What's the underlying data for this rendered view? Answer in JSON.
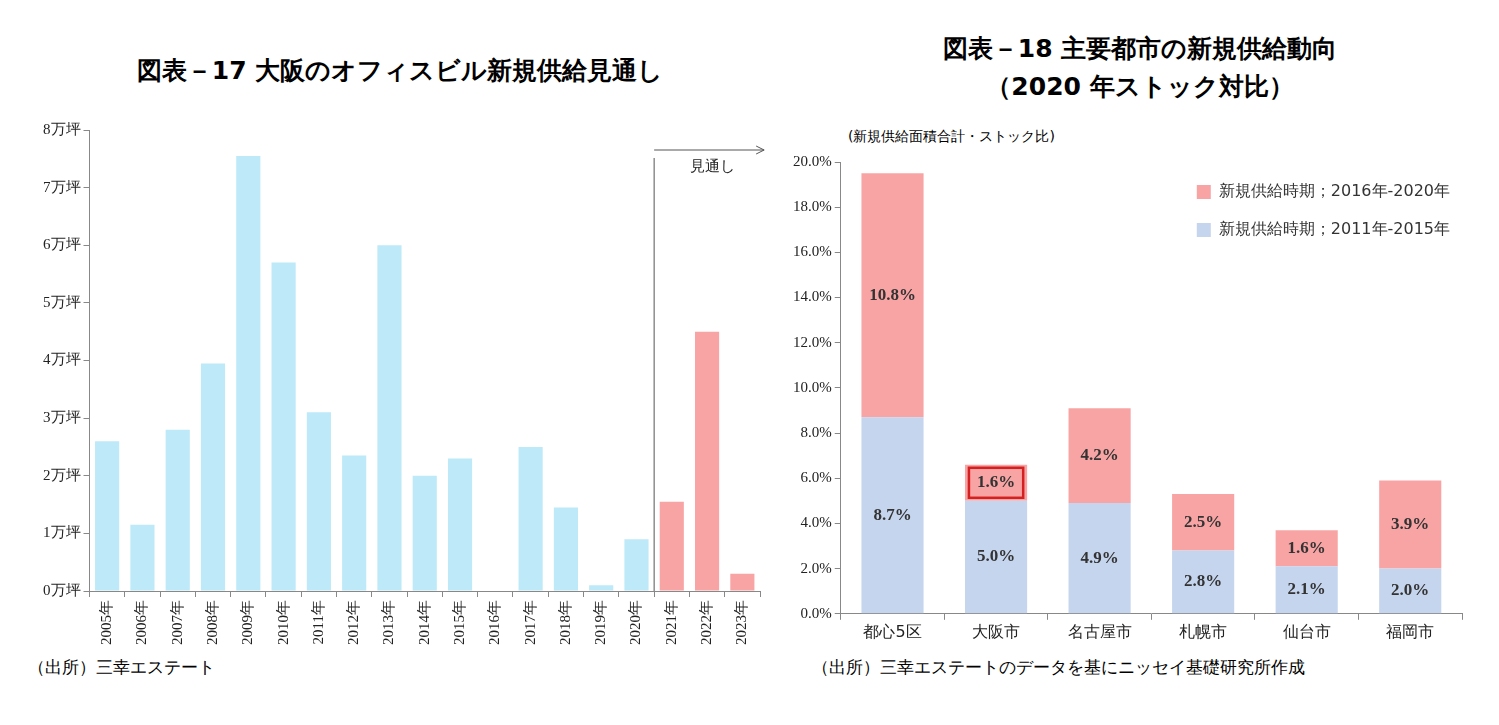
{
  "chart_data": [
    {
      "type": "bar",
      "title": "図表－17 大阪のオフィスビル新規供給見通し",
      "source": "（出所）三幸エステート",
      "categories": [
        "2005年",
        "2006年",
        "2007年",
        "2008年",
        "2009年",
        "2010年",
        "2011年",
        "2012年",
        "2013年",
        "2014年",
        "2015年",
        "2016年",
        "2017年",
        "2018年",
        "2019年",
        "2020年",
        "2021年",
        "2022年",
        "2023年"
      ],
      "values": [
        2.6,
        1.15,
        2.8,
        3.95,
        7.55,
        5.7,
        3.1,
        2.35,
        6.0,
        2.0,
        2.3,
        0,
        2.5,
        1.45,
        0.1,
        0.9,
        1.55,
        4.5,
        0.3
      ],
      "colors": [
        "#bde9f8",
        "#bde9f8",
        "#bde9f8",
        "#bde9f8",
        "#bde9f8",
        "#bde9f8",
        "#bde9f8",
        "#bde9f8",
        "#bde9f8",
        "#bde9f8",
        "#bde9f8",
        "#bde9f8",
        "#bde9f8",
        "#bde9f8",
        "#bde9f8",
        "#bde9f8",
        "#f8a4a4",
        "#f8a4a4",
        "#f8a4a4"
      ],
      "ylim": [
        0,
        8
      ],
      "yticks": [
        {
          "value": 0,
          "label": "0万坪"
        },
        {
          "value": 1,
          "label": "1万坪"
        },
        {
          "value": 2,
          "label": "2万坪"
        },
        {
          "value": 3,
          "label": "3万坪"
        },
        {
          "value": 4,
          "label": "4万坪"
        },
        {
          "value": 5,
          "label": "5万坪"
        },
        {
          "value": 6,
          "label": "6万坪"
        },
        {
          "value": 7,
          "label": "7万坪"
        },
        {
          "value": 8,
          "label": "8万坪"
        }
      ],
      "annotations": [
        {
          "text": "見通し",
          "from_category": "2021年"
        }
      ],
      "grid": false,
      "data_labels": false
    },
    {
      "type": "bar",
      "title": "図表－18 主要都市の新規供給動向",
      "subtitle": "（2020 年ストック対比）",
      "y_label": "(新規供給面積合計・ストック比)",
      "source": "（出所）三幸エステートのデータを基にニッセイ基礎研究所作成",
      "categories": [
        "都心5区",
        "大阪市",
        "名古屋市",
        "札幌市",
        "仙台市",
        "福岡市"
      ],
      "series": [
        {
          "name": "新規供給時期；2011年-2015年",
          "color": "#c5d5ee",
          "values": [
            8.7,
            5.0,
            4.9,
            2.8,
            2.1,
            2.0
          ],
          "value_labels": [
            "8.7%",
            "5.0%",
            "4.9%",
            "2.8%",
            "2.1%",
            "2.0%"
          ]
        },
        {
          "name": "新規供給時期；2016年-2020年",
          "color": "#f8a4a4",
          "values": [
            10.8,
            1.6,
            4.2,
            2.5,
            1.6,
            3.9
          ],
          "value_labels": [
            "10.8%",
            "1.6%",
            "4.2%",
            "2.5%",
            "1.6%",
            "3.9%"
          ]
        }
      ],
      "stacked": true,
      "ylim": [
        0,
        20
      ],
      "yticks": [
        {
          "value": 0,
          "label": "0.0%"
        },
        {
          "value": 2,
          "label": "2.0%"
        },
        {
          "value": 4,
          "label": "4.0%"
        },
        {
          "value": 6,
          "label": "6.0%"
        },
        {
          "value": 8,
          "label": "8.0%"
        },
        {
          "value": 10,
          "label": "10.0%"
        },
        {
          "value": 12,
          "label": "12.0%"
        },
        {
          "value": 14,
          "label": "14.0%"
        },
        {
          "value": 16,
          "label": "16.0%"
        },
        {
          "value": 18,
          "label": "18.0%"
        },
        {
          "value": 20,
          "label": "20.0%"
        }
      ],
      "annotations": [
        {
          "type": "box",
          "category": "大阪市",
          "series": "新規供給時期；2016年-2020年",
          "color": "#d42020"
        }
      ],
      "legend": "top-right",
      "grid": false,
      "data_labels": true
    }
  ]
}
